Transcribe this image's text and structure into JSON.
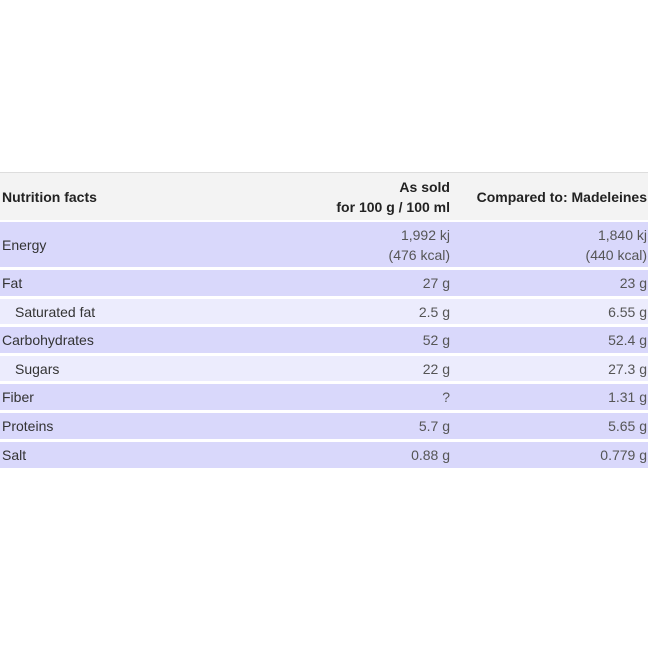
{
  "header": {
    "label": "Nutrition facts",
    "as_sold_line1": "As sold",
    "as_sold_line2": "for 100 g / 100 ml",
    "compared": "Compared to: Madeleines"
  },
  "rows": [
    {
      "name": "Energy",
      "sold_line1": "1,992 kj",
      "sold_line2": "(476 kcal)",
      "comp_line1": "1,840 kj",
      "comp_line2": "(440 kcal)"
    },
    {
      "name": "Fat",
      "sold": "27 g",
      "comp": "23 g"
    },
    {
      "name": "Saturated fat",
      "sold": "2.5 g",
      "comp": "6.55 g"
    },
    {
      "name": "Carbohydrates",
      "sold": "52 g",
      "comp": "52.4 g"
    },
    {
      "name": "Sugars",
      "sold": "22 g",
      "comp": "27.3 g"
    },
    {
      "name": "Fiber",
      "sold": "?",
      "comp": "1.31 g"
    },
    {
      "name": "Proteins",
      "sold": "5.7 g",
      "comp": "5.65 g"
    },
    {
      "name": "Salt",
      "sold": "0.88 g",
      "comp": "0.779 g"
    }
  ],
  "colors": {
    "header_bg": "#f3f3f3",
    "main_row_bg": "#d9d8fb",
    "sub_row_bg": "#ececfd"
  }
}
